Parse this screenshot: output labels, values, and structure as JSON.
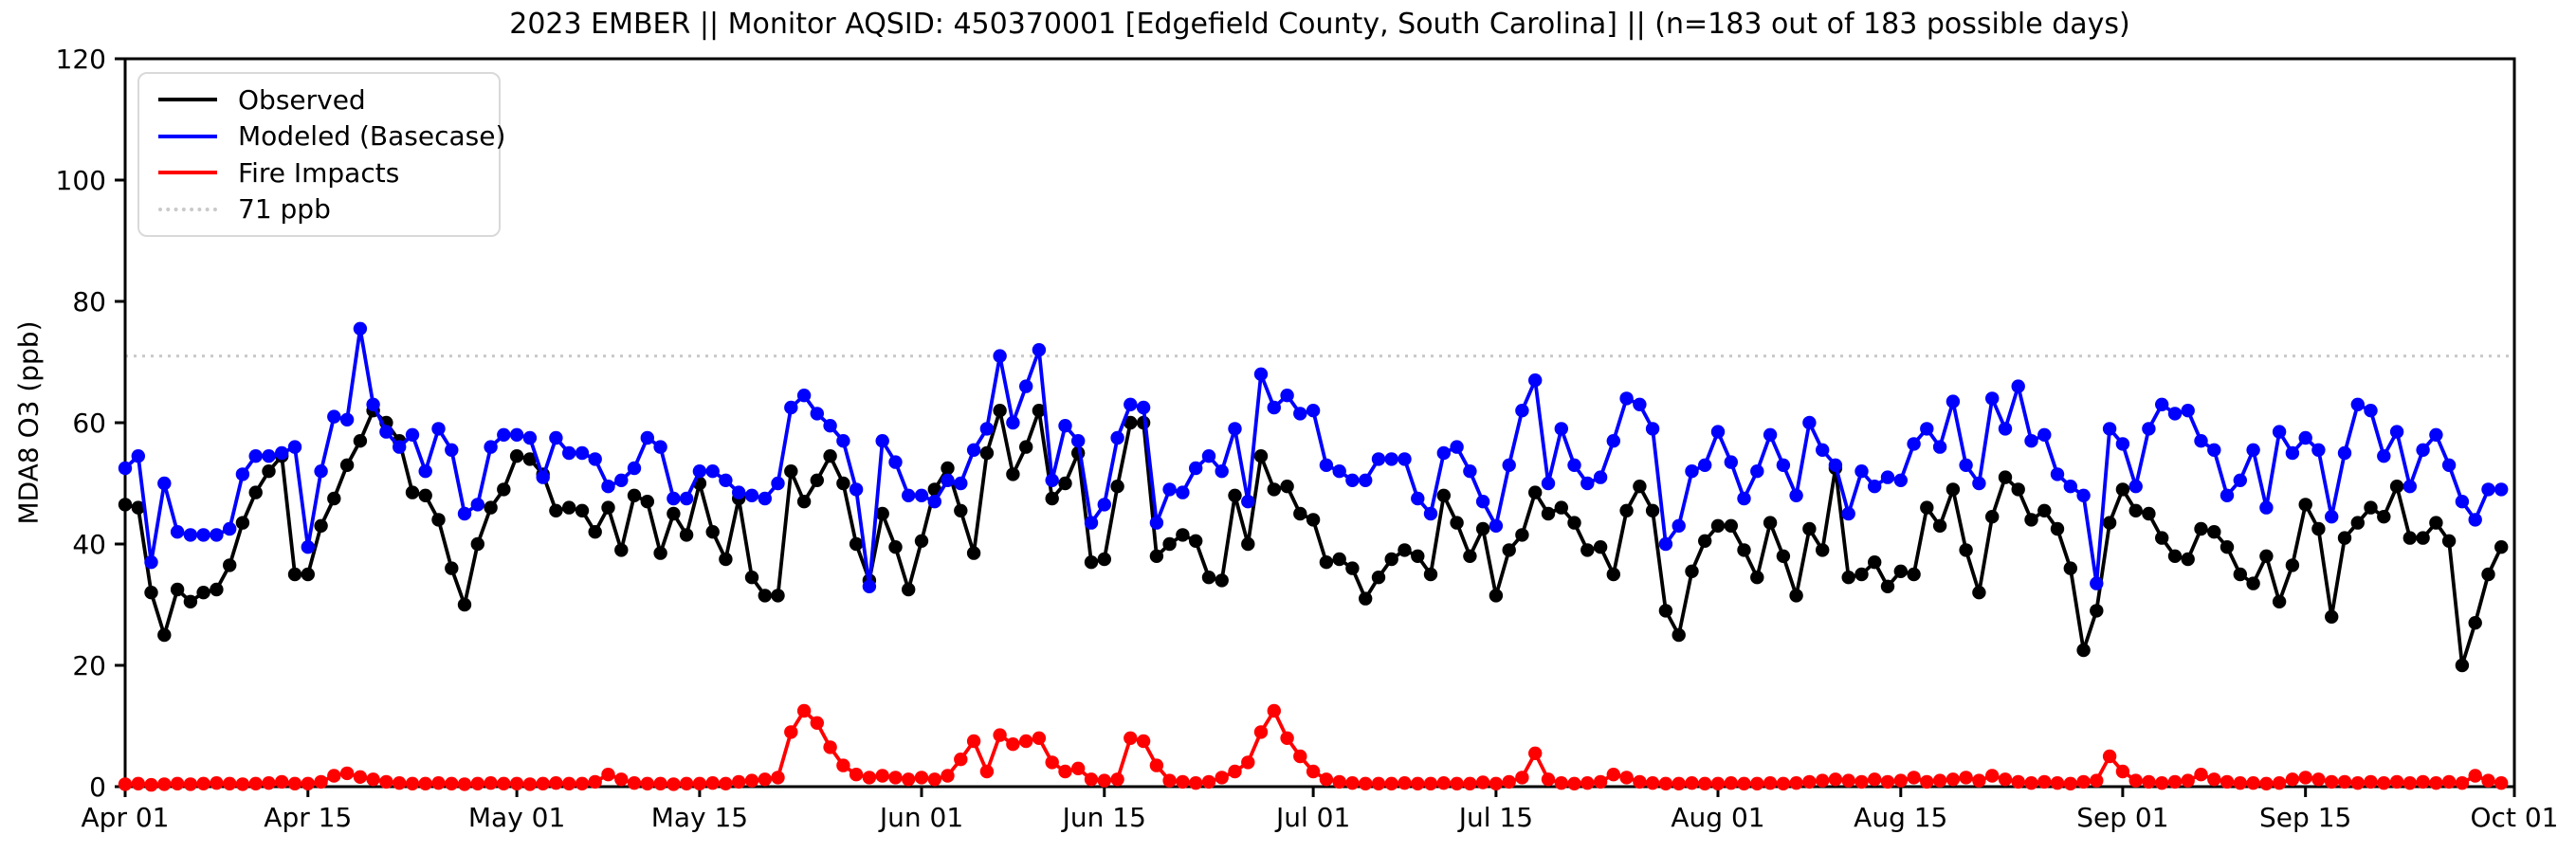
{
  "chart_data": {
    "type": "line",
    "title": "2023 EMBER || Monitor AQSID: 450370001 [Edgefield County, South Carolina] || (n=183 out of 183 possible days)",
    "ylabel": "MDA8 O3 (ppb)",
    "ylim": [
      0,
      120
    ],
    "yticks": [
      0,
      20,
      40,
      60,
      80,
      100,
      120
    ],
    "x_days_total": 183,
    "xtick_days": [
      0,
      14,
      30,
      44,
      61,
      75,
      91,
      105,
      122,
      136,
      153,
      167,
      183
    ],
    "xtick_labels": [
      "Apr 01",
      "Apr 15",
      "May 01",
      "May 15",
      "Jun 01",
      "Jun 15",
      "Jul 01",
      "Jul 15",
      "Aug 01",
      "Aug 15",
      "Sep 01",
      "Sep 15",
      "Oct 01"
    ],
    "grid": false,
    "legend_position": "upper-left",
    "threshold": {
      "label": "71 ppb",
      "value": 71,
      "color": "#c9c9c9"
    },
    "n_text": "n=183 out of 183 possible days",
    "series": [
      {
        "name": "Observed",
        "color": "#000000",
        "values": [
          46.5,
          46,
          32,
          25,
          32.5,
          30.5,
          32,
          32.5,
          36.5,
          43.5,
          48.5,
          52,
          54.5,
          35,
          35,
          43,
          47.5,
          53,
          57,
          62,
          60,
          57,
          48.5,
          48,
          44,
          36,
          30,
          40,
          46,
          49,
          54.5,
          54,
          51.5,
          45.5,
          46,
          45.5,
          42,
          46,
          39,
          48,
          47,
          38.5,
          45,
          41.5,
          50,
          42,
          37.5,
          47.5,
          34.5,
          31.5,
          31.5,
          52,
          47,
          50.5,
          54.5,
          50,
          40,
          34,
          45,
          39.5,
          32.5,
          40.5,
          49,
          52.5,
          45.5,
          38.5,
          55,
          62,
          51.5,
          56,
          62,
          47.5,
          50,
          55,
          37,
          37.5,
          49.5,
          60,
          60,
          38,
          40,
          41.5,
          40.5,
          34.5,
          34,
          48,
          40,
          54.5,
          49,
          49.5,
          45,
          44,
          37,
          37.5,
          36,
          31,
          34.5,
          37.5,
          39,
          38,
          35,
          48,
          43.5,
          38,
          42.5,
          31.5,
          39,
          41.5,
          48.5,
          45,
          46,
          43.5,
          39,
          39.5,
          35,
          45.5,
          49.5,
          45.5,
          29,
          25,
          35.5,
          40.5,
          43,
          43,
          39,
          34.5,
          43.5,
          38,
          31.5,
          42.5,
          39,
          52.5,
          34.5,
          35,
          37,
          33,
          35.5,
          35,
          46,
          43,
          49,
          39,
          32,
          44.5,
          51,
          49,
          44,
          45.5,
          42.5,
          36,
          22.5,
          29,
          43.5,
          49,
          45.5,
          45,
          41,
          38,
          37.5,
          42.5,
          42,
          39.5,
          35,
          33.5,
          38,
          30.5,
          36.5,
          46.5,
          42.5,
          28,
          41,
          43.5,
          46,
          44.5,
          49.5,
          41,
          41,
          43.5,
          40.5,
          20,
          27,
          35,
          39.5
        ]
      },
      {
        "name": "Modeled (Basecase)",
        "color": "#0000ff",
        "values": [
          52.5,
          54.5,
          37,
          50,
          42,
          41.5,
          41.5,
          41.5,
          42.5,
          51.5,
          54.5,
          54.5,
          55,
          56,
          39.5,
          52,
          61,
          60.5,
          75.5,
          63,
          58.5,
          56,
          58,
          52,
          59,
          55.5,
          45,
          46.5,
          56,
          58,
          58,
          57.5,
          51,
          57.5,
          55,
          55,
          54,
          49.5,
          50.5,
          52.5,
          57.5,
          56,
          47.5,
          47.5,
          52,
          52,
          50.5,
          48.5,
          48,
          47.5,
          50,
          62.5,
          64.5,
          61.5,
          59.5,
          57,
          49,
          33,
          57,
          53.5,
          48,
          48,
          47,
          50.5,
          50,
          55.5,
          59,
          71,
          60,
          66,
          72,
          50.5,
          59.5,
          57,
          43.5,
          46.5,
          57.5,
          63,
          62.5,
          43.5,
          49,
          48.5,
          52.5,
          54.5,
          52,
          59,
          47,
          68,
          62.5,
          64.5,
          61.5,
          62,
          53,
          52,
          50.5,
          50.5,
          54,
          54,
          54,
          47.5,
          45,
          55,
          56,
          52,
          47,
          43,
          53,
          62,
          67,
          50,
          59,
          53,
          50,
          51,
          57,
          64,
          63,
          59,
          40,
          43,
          52,
          53,
          58.5,
          53.5,
          47.5,
          52,
          58,
          53,
          48,
          60,
          55.5,
          53,
          45,
          52,
          49.5,
          51,
          50.5,
          56.5,
          59,
          56,
          63.5,
          53,
          50,
          64,
          59,
          66,
          57,
          58,
          51.5,
          49.5,
          48,
          33.5,
          59,
          56.5,
          49.5,
          59,
          63,
          61.5,
          62,
          57,
          55.5,
          48,
          50.5,
          55.5,
          46,
          58.5,
          55,
          57.5,
          55.5,
          44.5,
          55,
          63,
          62,
          54.5,
          58.5,
          49.5,
          55.5,
          58,
          53,
          47,
          44,
          49,
          49
        ]
      },
      {
        "name": "Fire Impacts",
        "color": "#ff0000",
        "values": [
          0.4,
          0.5,
          0.3,
          0.4,
          0.5,
          0.4,
          0.5,
          0.6,
          0.5,
          0.4,
          0.5,
          0.6,
          0.8,
          0.5,
          0.5,
          0.8,
          1.8,
          2.2,
          1.6,
          1.2,
          0.8,
          0.6,
          0.5,
          0.5,
          0.6,
          0.5,
          0.4,
          0.5,
          0.6,
          0.5,
          0.5,
          0.4,
          0.5,
          0.6,
          0.5,
          0.5,
          0.8,
          2,
          1.2,
          0.6,
          0.5,
          0.5,
          0.4,
          0.5,
          0.5,
          0.6,
          0.5,
          0.8,
          1,
          1.2,
          1.5,
          9,
          12.5,
          10.5,
          6.5,
          3.5,
          2,
          1.5,
          1.8,
          1.5,
          1.2,
          1.5,
          1.2,
          1.8,
          4.5,
          7.5,
          2.5,
          8.5,
          7,
          7.5,
          8,
          4,
          2.5,
          3,
          1.2,
          1,
          1.2,
          8,
          7.5,
          3.5,
          1,
          0.8,
          0.6,
          0.8,
          1.5,
          2.5,
          4,
          9,
          12.5,
          8,
          5,
          2.5,
          1.2,
          0.8,
          0.6,
          0.5,
          0.5,
          0.5,
          0.6,
          0.5,
          0.5,
          0.6,
          0.5,
          0.5,
          0.7,
          0.5,
          0.8,
          1.5,
          5.5,
          1.2,
          0.6,
          0.5,
          0.6,
          0.8,
          2,
          1.5,
          0.8,
          0.6,
          0.5,
          0.5,
          0.6,
          0.5,
          0.5,
          0.6,
          0.5,
          0.5,
          0.6,
          0.5,
          0.6,
          0.8,
          1,
          1.2,
          1,
          0.8,
          1.2,
          0.8,
          1,
          1.5,
          0.8,
          1,
          1.2,
          1.5,
          1,
          1.8,
          1.2,
          0.8,
          0.6,
          0.8,
          0.6,
          0.5,
          0.8,
          1,
          5,
          2.5,
          1,
          0.8,
          0.6,
          0.8,
          1,
          2,
          1.2,
          0.8,
          0.6,
          0.6,
          0.5,
          0.6,
          1.2,
          1.5,
          1.2,
          0.8,
          0.8,
          0.6,
          0.8,
          0.6,
          0.8,
          0.6,
          0.8,
          0.6,
          0.8,
          0.6,
          1.8,
          1,
          0.6
        ]
      }
    ]
  }
}
